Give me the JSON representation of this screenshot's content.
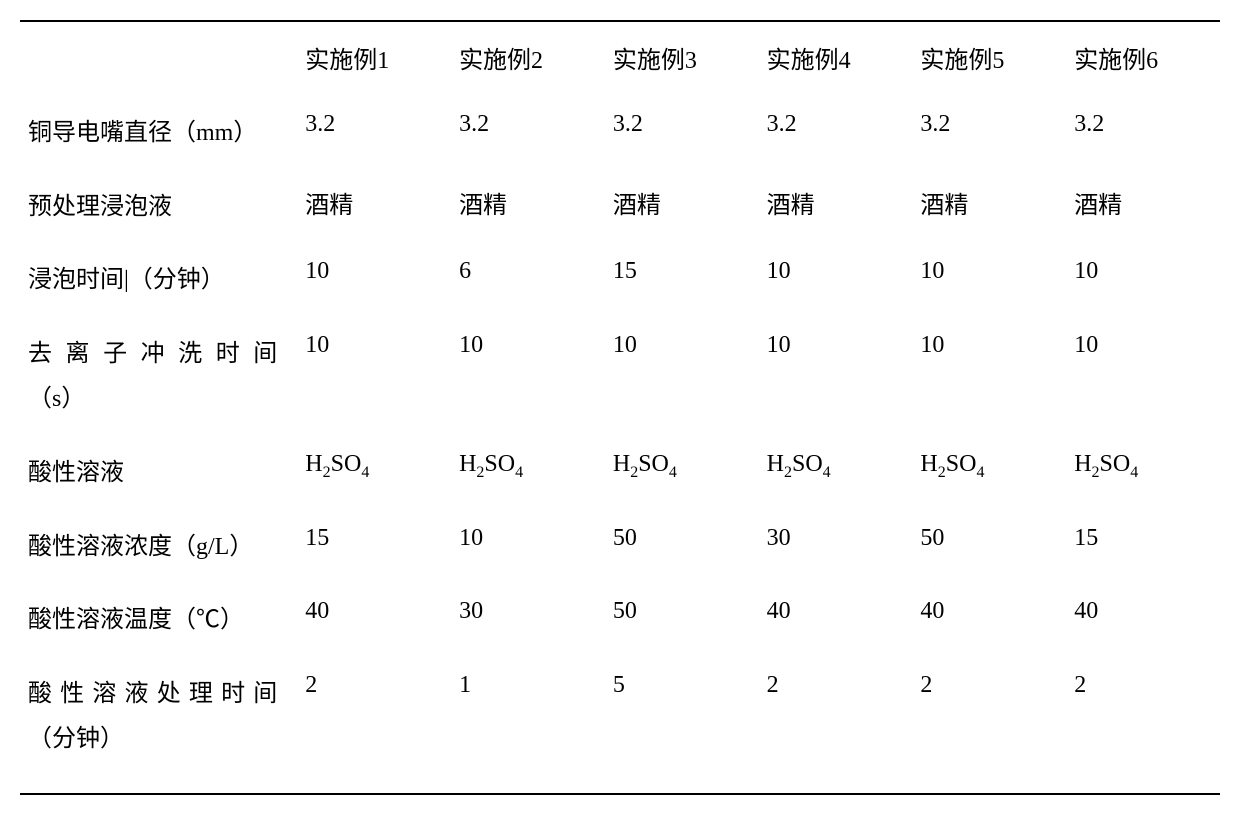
{
  "table": {
    "columns": [
      "",
      "实施例1",
      "实施例2",
      "实施例3",
      "实施例4",
      "实施例5",
      "实施例6"
    ],
    "rows": [
      {
        "label": "铜导电嘴直径（mm）",
        "cells": [
          "3.2",
          "3.2",
          "3.2",
          "3.2",
          "3.2",
          "3.2"
        ],
        "label_style": "compact"
      },
      {
        "label": "预处理浸泡液",
        "cells": [
          "酒精",
          "酒精",
          "酒精",
          "酒精",
          "酒精",
          "酒精"
        ],
        "label_style": "compact"
      },
      {
        "label": "浸泡时间|（分钟）",
        "cells": [
          "10",
          "6",
          "15",
          "10",
          "10",
          "10"
        ],
        "label_style": "compact"
      },
      {
        "label": "去离子冲洗时间（s）",
        "label_line1": "去离子冲洗时间",
        "label_line2": "（s）",
        "cells": [
          "10",
          "10",
          "10",
          "10",
          "10",
          "10"
        ],
        "label_style": "multiline"
      },
      {
        "label": "酸性溶液",
        "cells": [
          "H₂SO₄",
          "H₂SO₄",
          "H₂SO₄",
          "H₂SO₄",
          "H₂SO₄",
          "H₂SO₄"
        ],
        "formula": {
          "base": "H",
          "sub1": "2",
          "mid": "SO",
          "sub2": "4"
        },
        "label_style": "compact",
        "cell_type": "formula"
      },
      {
        "label": "酸性溶液浓度（g/L）",
        "cells": [
          "15",
          "10",
          "50",
          "30",
          "50",
          "15"
        ],
        "label_style": "compact"
      },
      {
        "label": "酸性溶液温度（℃）",
        "cells": [
          "40",
          "30",
          "50",
          "40",
          "40",
          "40"
        ],
        "label_style": "compact"
      },
      {
        "label": "酸性溶液处理时间（分钟）",
        "label_line1": "酸性溶液处理时间",
        "label_line2": "（分钟）",
        "cells": [
          "2",
          "1",
          "5",
          "2",
          "2",
          "2"
        ],
        "label_style": "multiline"
      }
    ],
    "style": {
      "border_color": "#000000",
      "background_color": "#ffffff",
      "text_color": "#000000",
      "font_size": 24,
      "sub_font_size": 16
    }
  }
}
